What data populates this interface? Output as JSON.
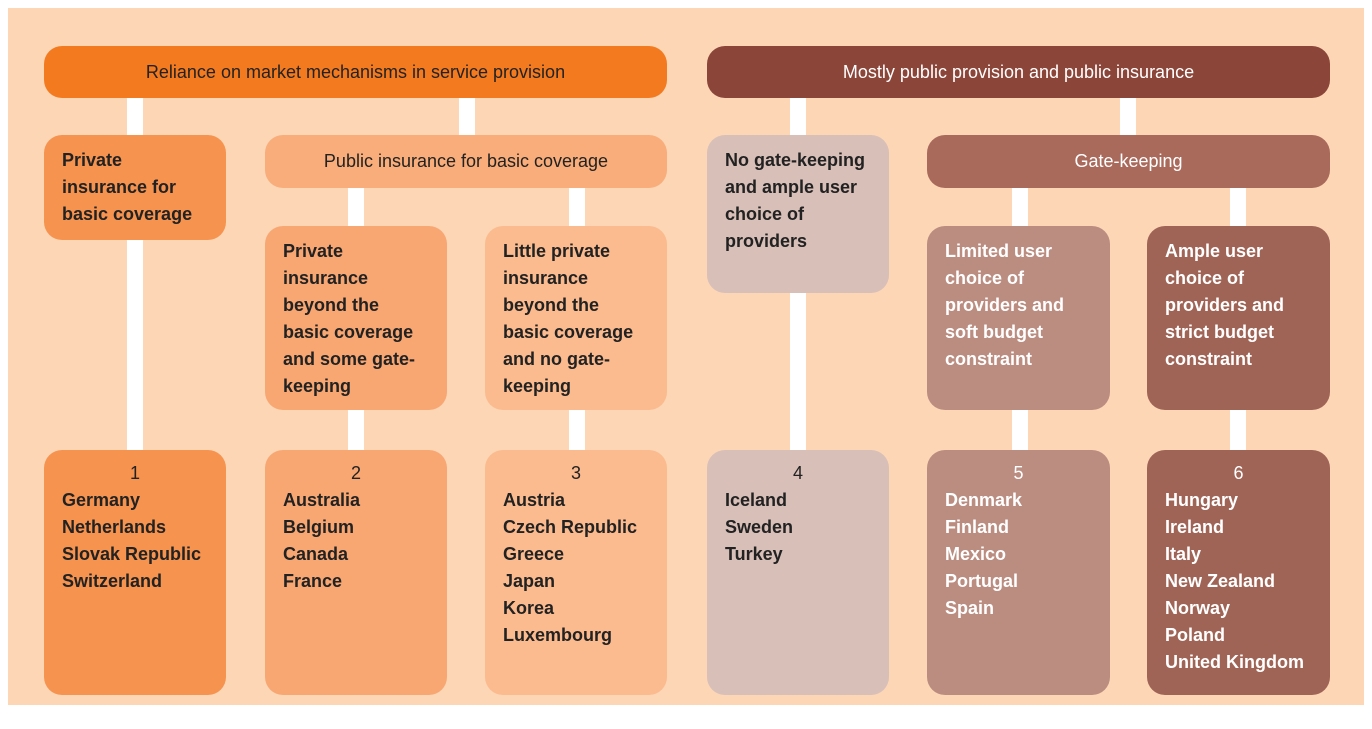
{
  "top": [
    {
      "label": "Reliance on market mechanisms in service provision"
    },
    {
      "label": "Mostly public provision and public insurance"
    }
  ],
  "level2": [
    {
      "label": "Private insurance for basic coverage"
    },
    {
      "label": "Public insurance for basic coverage"
    },
    {
      "label": "No gate-keeping and ample user choice of providers"
    },
    {
      "label": "Gate-keeping"
    }
  ],
  "level3": [
    {
      "label": "Private insurance beyond the basic coverage and some gate-keeping"
    },
    {
      "label": "Little private insurance beyond the basic coverage and no gate-keeping"
    },
    {
      "label": "Limited user choice of providers and soft budget constraint"
    },
    {
      "label": "Ample user choice of providers and strict budget constraint"
    }
  ],
  "groups": [
    {
      "number": 1,
      "countries": [
        "Germany",
        "Netherlands",
        "Slovak Republic",
        "Switzerland"
      ]
    },
    {
      "number": 2,
      "countries": [
        "Australia",
        "Belgium",
        "Canada",
        "France"
      ]
    },
    {
      "number": 3,
      "countries": [
        "Austria",
        "Czech Republic",
        "Greece",
        "Japan",
        "Korea",
        "Luxembourg"
      ]
    },
    {
      "number": 4,
      "countries": [
        "Iceland",
        "Sweden",
        "Turkey"
      ]
    },
    {
      "number": 5,
      "countries": [
        "Denmark",
        "Finland",
        "Mexico",
        "Portugal",
        "Spain"
      ]
    },
    {
      "number": 6,
      "countries": [
        "Hungary",
        "Ireland",
        "Italy",
        "New Zealand",
        "Norway",
        "Poland",
        "United Kingdom"
      ]
    }
  ]
}
